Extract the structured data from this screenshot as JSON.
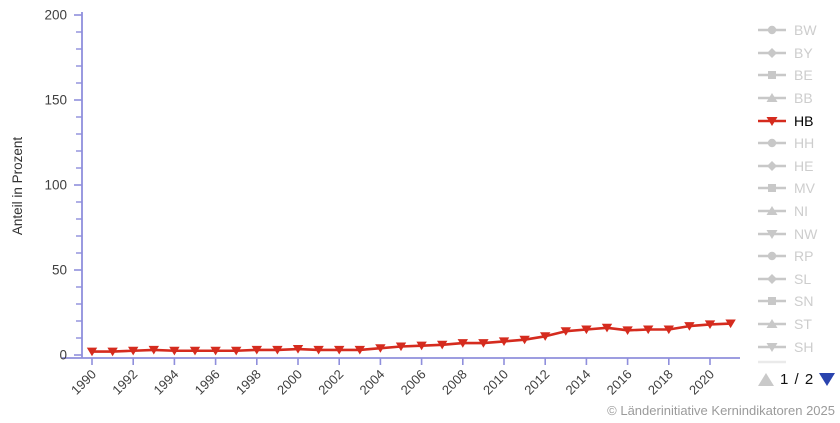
{
  "chart_data": {
    "type": "line",
    "title": "",
    "xlabel": "",
    "ylabel": "Anteil in Prozent",
    "ylim": [
      0,
      200
    ],
    "y_major_ticks": [
      0,
      50,
      100,
      150,
      200
    ],
    "y_minor_step": 10,
    "x_tick_years": [
      1990,
      1992,
      1994,
      1996,
      1998,
      2000,
      2002,
      2004,
      2006,
      2008,
      2010,
      2012,
      2014,
      2016,
      2018,
      2020
    ],
    "grid": false,
    "legend_position": "right",
    "x": [
      1990,
      1991,
      1992,
      1993,
      1994,
      1995,
      1996,
      1997,
      1998,
      1999,
      2000,
      2001,
      2002,
      2003,
      2004,
      2005,
      2006,
      2007,
      2008,
      2009,
      2010,
      2011,
      2012,
      2013,
      2014,
      2015,
      2016,
      2017,
      2018,
      2019,
      2020,
      2021
    ],
    "series": [
      {
        "name": "HB",
        "marker": "triangle-down",
        "color": "#d52b1e",
        "values": [
          2,
          2,
          2.5,
          3,
          2.5,
          2.5,
          2.5,
          2.5,
          3,
          3,
          3.5,
          3,
          3,
          3,
          4,
          5,
          5.5,
          6,
          7,
          7,
          8,
          9,
          11,
          14,
          15,
          16,
          14.5,
          15,
          15,
          17,
          18,
          18.5
        ]
      }
    ]
  },
  "legend": {
    "items": [
      {
        "label": "BW",
        "marker": "circle",
        "active": false
      },
      {
        "label": "BY",
        "marker": "diamond",
        "active": false
      },
      {
        "label": "BE",
        "marker": "square",
        "active": false
      },
      {
        "label": "BB",
        "marker": "triangle-up",
        "active": false
      },
      {
        "label": "HB",
        "marker": "triangle-down",
        "active": true
      },
      {
        "label": "HH",
        "marker": "circle",
        "active": false
      },
      {
        "label": "HE",
        "marker": "diamond",
        "active": false
      },
      {
        "label": "MV",
        "marker": "square",
        "active": false
      },
      {
        "label": "NI",
        "marker": "triangle-up",
        "active": false
      },
      {
        "label": "NW",
        "marker": "triangle-down",
        "active": false
      },
      {
        "label": "RP",
        "marker": "circle",
        "active": false
      },
      {
        "label": "SL",
        "marker": "diamond",
        "active": false
      },
      {
        "label": "SN",
        "marker": "square",
        "active": false
      },
      {
        "label": "ST",
        "marker": "triangle-up",
        "active": false
      },
      {
        "label": "SH",
        "marker": "triangle-down",
        "active": false
      }
    ],
    "pager": {
      "label": "1 / 2",
      "prev_icon": "up-triangle",
      "next_icon": "down-triangle"
    }
  },
  "footer": {
    "copyright": "© Länderinitiative Kernindikatoren 2025"
  },
  "colors": {
    "axis": "#8f8fdc",
    "tick_label": "#3f3f3f",
    "axis_title": "#333333",
    "series_active": "#d52b1e",
    "legend_inactive_marker": "#c8c8c8",
    "legend_inactive_label": "#cdcdcd",
    "legend_active_label": "#000000",
    "pager_prev": "#c9c9c9",
    "pager_next": "#2a44ae",
    "copyright": "#9b9b9b"
  }
}
